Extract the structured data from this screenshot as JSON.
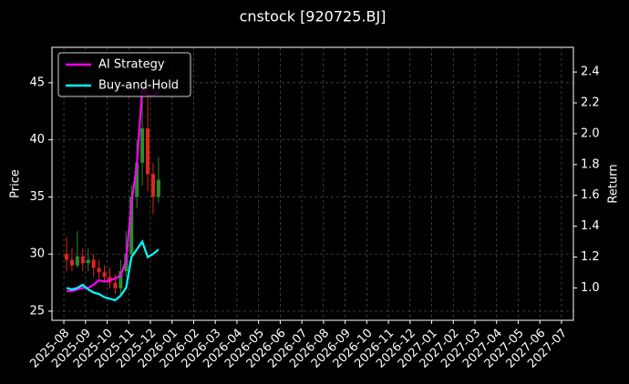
{
  "chart_data": {
    "type": "candlestick_returns",
    "title": "cnstock [920725.BJ]",
    "y_label": "Price",
    "y2_label": "Return",
    "x": [
      "2025-08",
      "2025-08",
      "2025-08",
      "2025-08",
      "2025-09",
      "2025-09",
      "2025-09",
      "2025-09",
      "2025-10",
      "2025-10",
      "2025-10",
      "2025-10",
      "2025-11",
      "2025-11",
      "2025-11",
      "2025-11",
      "2025-12",
      "2025-12"
    ],
    "open": [
      30,
      29.5,
      29,
      29.8,
      29.2,
      29.5,
      28.8,
      28.4,
      28,
      27.5,
      27,
      28.5,
      30,
      35,
      38,
      41,
      37,
      35
    ],
    "high": [
      31.5,
      30.5,
      32,
      30.5,
      30.5,
      30,
      29.5,
      29,
      28.8,
      28.2,
      29.5,
      32,
      36,
      40,
      44,
      45,
      38,
      38.5
    ],
    "low": [
      28.5,
      28.5,
      28.8,
      28.5,
      28.5,
      28,
      27.8,
      27.5,
      27,
      26.5,
      26.5,
      28,
      29.5,
      34,
      36,
      35.5,
      33.5,
      34.5
    ],
    "close": [
      29.5,
      29,
      29.8,
      29.2,
      29.5,
      28.8,
      28.4,
      28,
      27.5,
      27,
      28.5,
      30,
      35,
      38,
      41,
      37,
      35,
      36.5
    ],
    "up_color": "#2e8b2e",
    "down_color": "#e0251b",
    "series": [
      {
        "name": "AI Strategy",
        "color": "#ff00ff",
        "axis": "y2",
        "values": [
          0.98,
          0.98,
          0.99,
          1.0,
          1.0,
          1.02,
          1.05,
          1.04,
          1.05,
          1.06,
          1.08,
          1.18,
          1.55,
          1.8,
          2.3,
          2.25,
          2.25,
          2.27
        ]
      },
      {
        "name": "Buy-and-Hold",
        "color": "#00ffff",
        "axis": "y2",
        "values": [
          1.0,
          0.99,
          1.0,
          1.02,
          0.99,
          0.97,
          0.96,
          0.94,
          0.93,
          0.92,
          0.95,
          1.0,
          1.2,
          1.25,
          1.3,
          1.2,
          1.22,
          1.25
        ]
      }
    ],
    "xticks": [
      "2025-08",
      "2025-09",
      "2025-10",
      "2025-11",
      "2025-12",
      "2026-01",
      "2026-02",
      "2026-03",
      "2026-04",
      "2026-05",
      "2026-06",
      "2026-07",
      "2026-08",
      "2026-09",
      "2026-10",
      "2026-11",
      "2026-12",
      "2027-01",
      "2027-02",
      "2027-03",
      "2027-04",
      "2027-05",
      "2027-06",
      "2027-07"
    ],
    "ylim": [
      24.2,
      48.1
    ],
    "yticks": [
      25,
      30,
      35,
      40,
      45
    ],
    "y2lim": [
      0.79,
      2.56
    ],
    "y2ticks": [
      {
        "value": 1,
        "label": "1.0"
      },
      1.2,
      1.4,
      1.6,
      1.8,
      {
        "value": 2,
        "label": "2.0"
      },
      2.2,
      2.4
    ],
    "grid": true,
    "legend": "upper left"
  }
}
